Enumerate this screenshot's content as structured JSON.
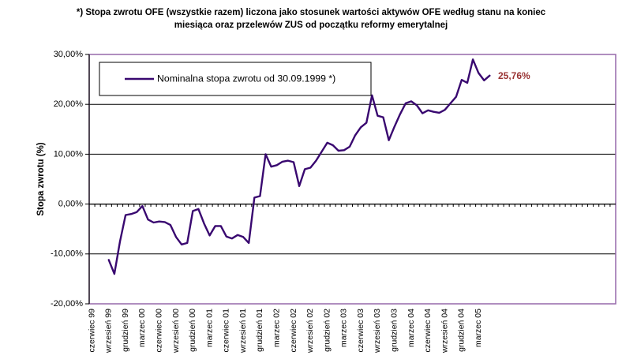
{
  "title": {
    "line1": "*) Stopa zwrotu OFE (wszystkie razem) liczona jako stosunek wartości aktywów OFE według stanu na koniec",
    "line2": "miesiąca oraz przelewów ZUS od początku reformy emerytalnej"
  },
  "chart_data": {
    "type": "line",
    "ylabel": "Stopa zwrotu (%)",
    "ylim": [
      -20,
      30
    ],
    "ytick_values": [
      30,
      20,
      10,
      0,
      -10,
      -20
    ],
    "ytick_labels": [
      "30,00%",
      "20,00%",
      "10,00%",
      "0,00%",
      "-10,00%",
      "-20,00%"
    ],
    "gridlines": [
      20,
      10,
      0,
      -10
    ],
    "grid": "horizontal black gridlines; monthly category tick marks drawn along the 0% axis; plot area framed in purple and extends beyond last data point",
    "xtick_labels": [
      "czerwiec 99",
      "wrzesień 99",
      "grudzień 99",
      "marzec 00",
      "czerwiec 00",
      "wrzesień 00",
      "grudzień 00",
      "marzec 01",
      "czerwiec 01",
      "wrzesień 01",
      "grudzień 01",
      "marzec 02",
      "czerwiec 02",
      "wrzesień 02",
      "grudzień 02",
      "marzec 03",
      "czerwiec 03",
      "wrzesień 03",
      "grudzień 03",
      "marzec 04",
      "czerwiec 04",
      "wrzesień 04",
      "grudzień 04",
      "marzec 05"
    ],
    "xtick_interval_months": 3,
    "axis_total_months": 94,
    "legend": {
      "label": "Nominalna stopa zwrotu od 30.09.1999 *)",
      "position": "top-left-inside"
    },
    "series": [
      {
        "name": "Nominalna stopa zwrotu od 30.09.1999 *)",
        "unit": "%",
        "start_month_offset": 3,
        "first_point_month": "wrzesień 99",
        "last_point_month": "maj 05",
        "values": [
          -11.2,
          -14.0,
          -7.5,
          -2.2,
          -2.0,
          -1.6,
          -0.4,
          -3.1,
          -3.7,
          -3.5,
          -3.6,
          -4.2,
          -6.6,
          -8.1,
          -7.8,
          -1.4,
          -1.0,
          -3.9,
          -6.3,
          -4.4,
          -4.4,
          -6.5,
          -6.9,
          -6.2,
          -6.6,
          -7.8,
          1.3,
          1.6,
          10.0,
          7.5,
          7.8,
          8.5,
          8.7,
          8.4,
          3.6,
          7.0,
          7.3,
          8.7,
          10.5,
          12.3,
          11.8,
          10.7,
          10.8,
          11.5,
          13.8,
          15.4,
          16.3,
          21.8,
          17.7,
          17.4,
          12.8,
          15.5,
          18.0,
          20.2,
          20.6,
          19.8,
          18.2,
          18.8,
          18.5,
          18.3,
          18.9,
          20.2,
          21.5,
          24.9,
          24.3,
          29.0,
          26.3,
          24.8,
          25.76
        ]
      }
    ],
    "annotation": {
      "text": "25,76%",
      "value": 25.76
    }
  },
  "colors": {
    "series_line": "#390870",
    "plot_border": "#9669aa",
    "gridline": "#000000",
    "axis": "#000000",
    "annotation": "#993333",
    "text": "#000000",
    "background": "#ffffff"
  }
}
